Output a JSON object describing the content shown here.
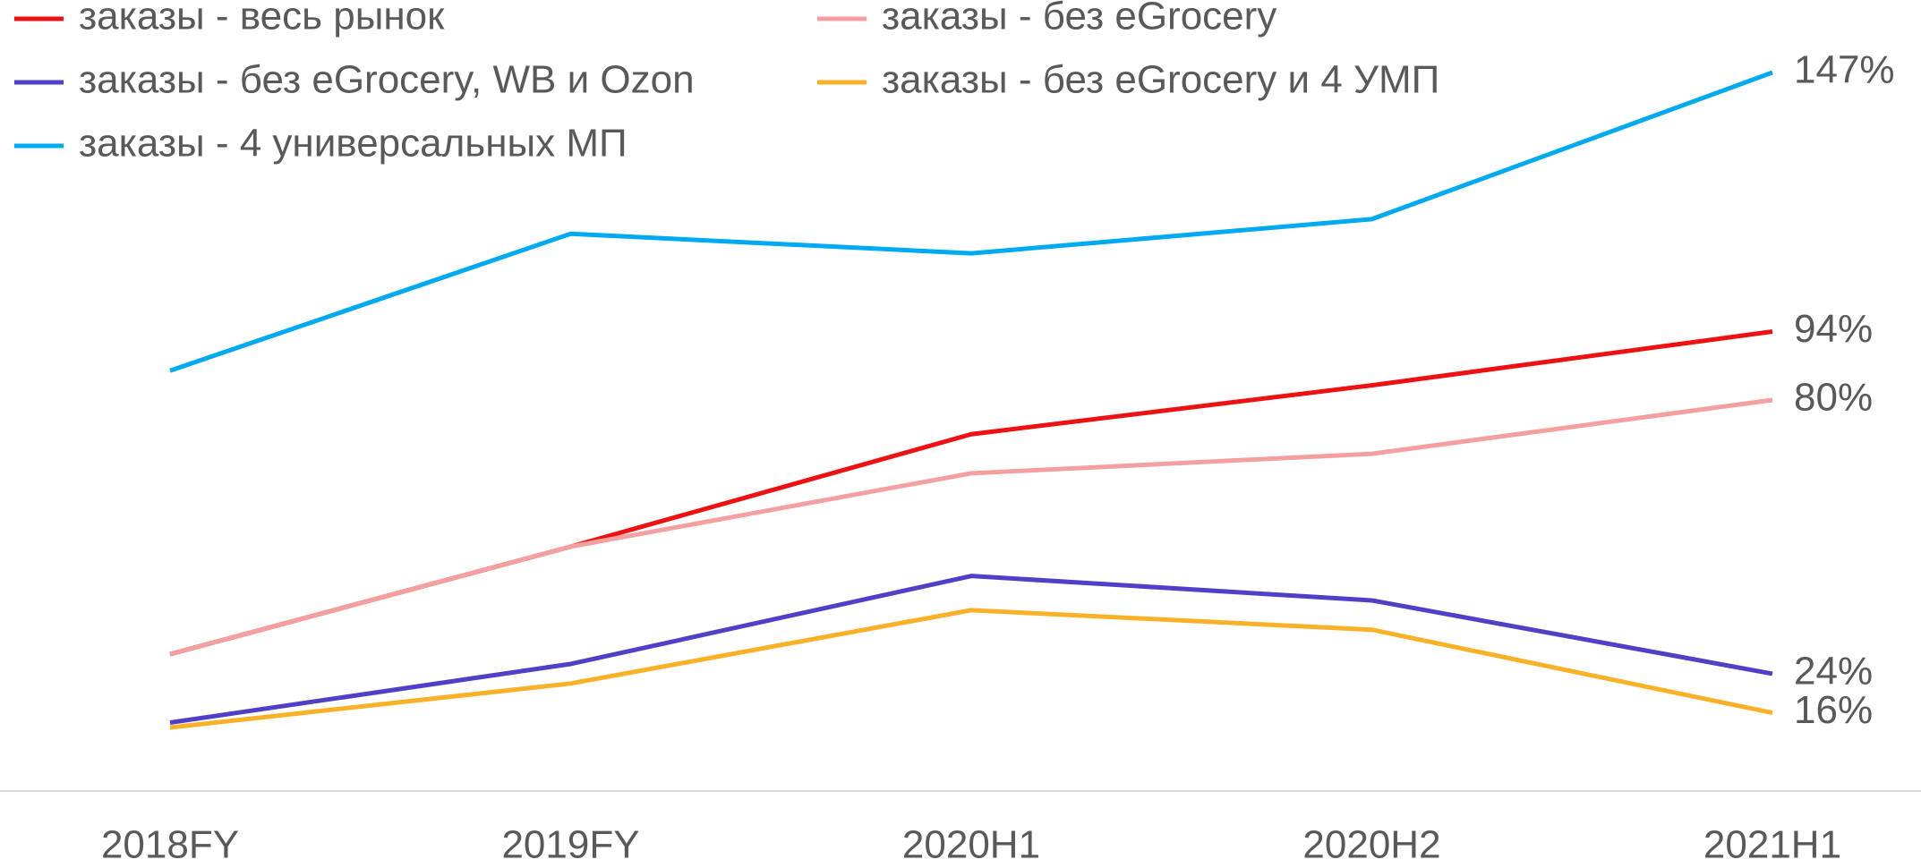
{
  "chart_data": {
    "type": "line",
    "categories": [
      "2018FY",
      "2019FY",
      "2020H1",
      "2020H2",
      "2021H1"
    ],
    "ylim": [
      0,
      160
    ],
    "series": [
      {
        "name": "заказы - весь рынок",
        "color": "#ee1111",
        "values": [
          28,
          50,
          73,
          83,
          94
        ],
        "value_labels": [
          null,
          null,
          null,
          null,
          "94%"
        ]
      },
      {
        "name": "заказы - без eGrocery",
        "color": "#f4a0a0",
        "values": [
          28,
          50,
          65,
          69,
          80
        ],
        "value_labels": [
          null,
          null,
          null,
          null,
          "80%"
        ]
      },
      {
        "name": "заказы - без eGrocery, WB и Ozon",
        "color": "#5040c8",
        "values": [
          14,
          26,
          44,
          39,
          24
        ],
        "value_labels": [
          null,
          null,
          null,
          null,
          "24%"
        ]
      },
      {
        "name": "заказы - без eGrocery и 4 УМП",
        "color": "#f9b128",
        "values": [
          13,
          22,
          37,
          33,
          16
        ],
        "value_labels": [
          null,
          null,
          null,
          null,
          "16%"
        ]
      },
      {
        "name": "заказы - 4 универсальных МП",
        "color": "#00aaf0",
        "values": [
          86,
          114,
          110,
          117,
          147
        ],
        "value_labels": [
          null,
          null,
          null,
          null,
          "147%"
        ]
      }
    ]
  }
}
